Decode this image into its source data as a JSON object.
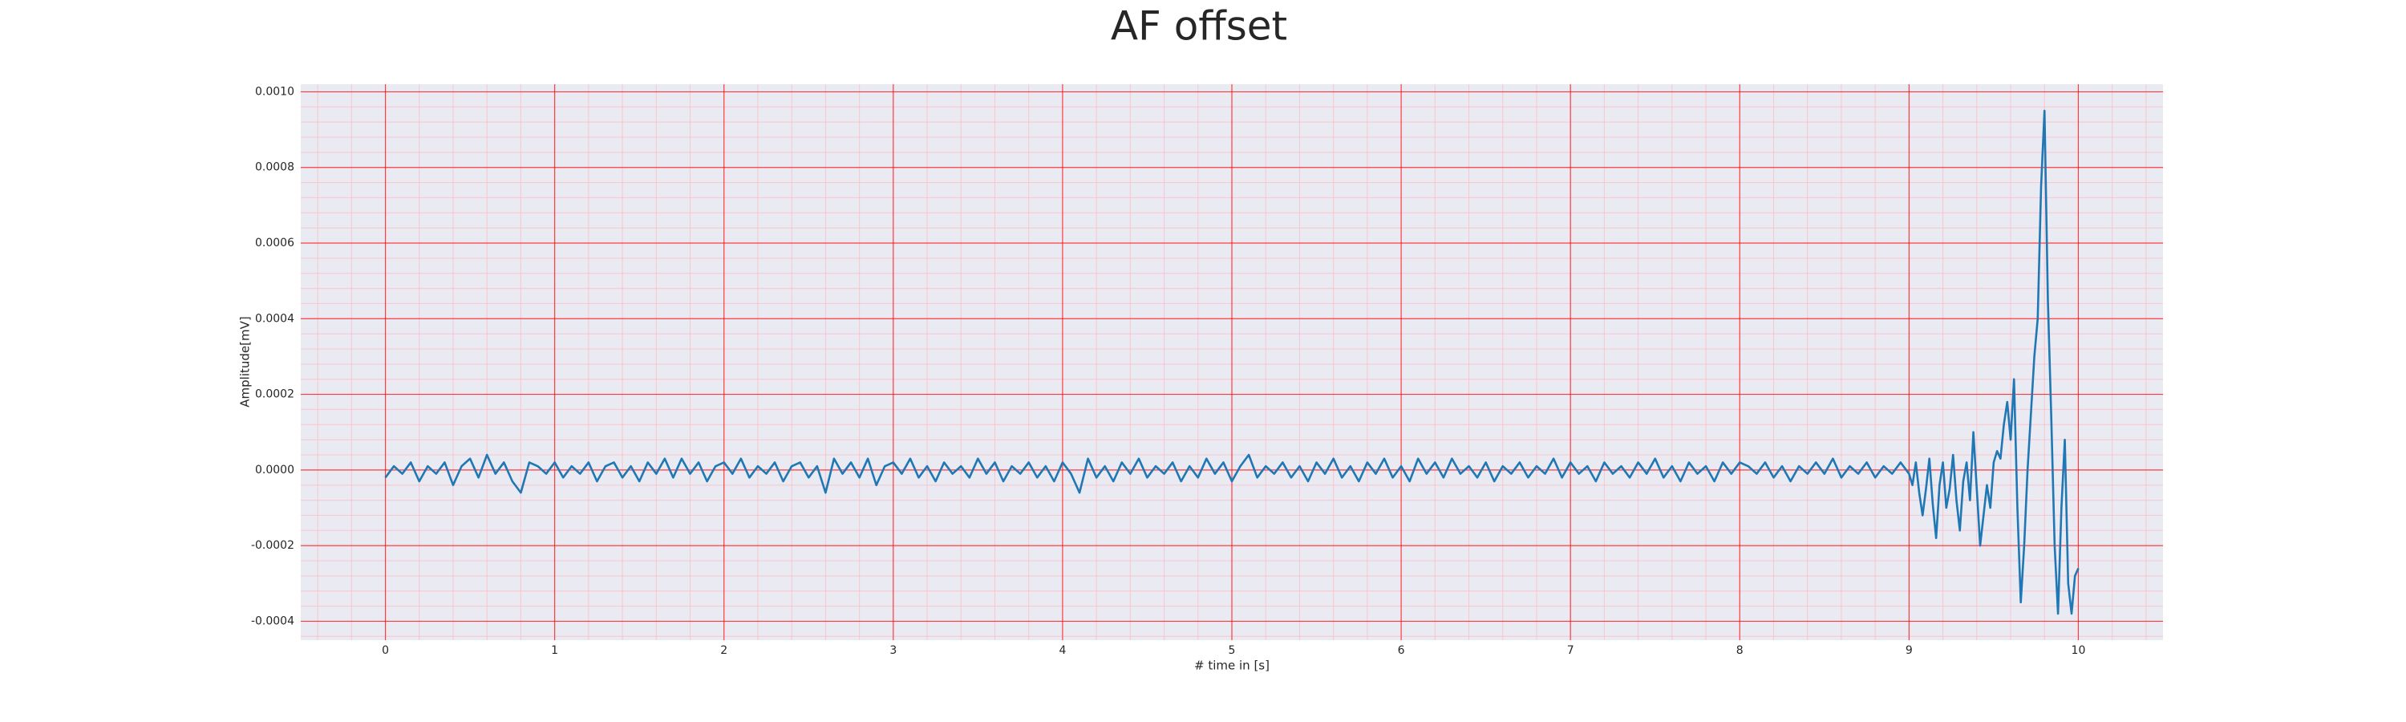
{
  "chart_data": {
    "type": "line",
    "title": "AF offset",
    "xlabel": "# time in [s]",
    "ylabel": "Amplitude[mV]",
    "color": "#1f77b4",
    "grid": true,
    "minor_grid": true,
    "minor_divisions": 5,
    "xlim": [
      -0.5,
      10.5
    ],
    "xticks": [
      0,
      1,
      2,
      3,
      4,
      5,
      6,
      7,
      8,
      9,
      10
    ],
    "ylim": [
      -0.00045,
      0.00102
    ],
    "yticks": [
      {
        "value": -0.0004,
        "label": "-0.0004"
      },
      {
        "value": -0.0002,
        "label": "-0.0002"
      },
      {
        "value": 0,
        "label": "0.0000"
      },
      {
        "value": 0.0002,
        "label": "0.0002"
      },
      {
        "value": 0.0004,
        "label": "0.0004"
      },
      {
        "value": 0.0006,
        "label": "0.0006"
      },
      {
        "value": 0.0008,
        "label": "0.0008"
      },
      {
        "value": 0.001,
        "label": "0.0010"
      }
    ],
    "x": [
      0,
      0.05,
      0.1,
      0.15,
      0.2,
      0.25,
      0.3,
      0.35,
      0.4,
      0.45,
      0.5,
      0.55,
      0.6,
      0.65,
      0.7,
      0.75,
      0.8,
      0.85,
      0.9,
      0.95,
      1,
      1.05,
      1.1,
      1.15,
      1.2,
      1.25,
      1.3,
      1.35,
      1.4,
      1.45,
      1.5,
      1.55,
      1.6,
      1.65,
      1.7,
      1.75,
      1.8,
      1.85,
      1.9,
      1.95,
      2,
      2.05,
      2.1,
      2.15,
      2.2,
      2.25,
      2.3,
      2.35,
      2.4,
      2.45,
      2.5,
      2.55,
      2.6,
      2.65,
      2.7,
      2.75,
      2.8,
      2.85,
      2.9,
      2.95,
      3,
      3.05,
      3.1,
      3.15,
      3.2,
      3.25,
      3.3,
      3.35,
      3.4,
      3.45,
      3.5,
      3.55,
      3.6,
      3.65,
      3.7,
      3.75,
      3.8,
      3.85,
      3.9,
      3.95,
      4,
      4.05,
      4.1,
      4.15,
      4.2,
      4.25,
      4.3,
      4.35,
      4.4,
      4.45,
      4.5,
      4.55,
      4.6,
      4.65,
      4.7,
      4.75,
      4.8,
      4.85,
      4.9,
      4.95,
      5,
      5.05,
      5.1,
      5.15,
      5.2,
      5.25,
      5.3,
      5.35,
      5.4,
      5.45,
      5.5,
      5.55,
      5.6,
      5.65,
      5.7,
      5.75,
      5.8,
      5.85,
      5.9,
      5.95,
      6,
      6.05,
      6.1,
      6.15,
      6.2,
      6.25,
      6.3,
      6.35,
      6.4,
      6.45,
      6.5,
      6.55,
      6.6,
      6.65,
      6.7,
      6.75,
      6.8,
      6.85,
      6.9,
      6.95,
      7,
      7.05,
      7.1,
      7.15,
      7.2,
      7.25,
      7.3,
      7.35,
      7.4,
      7.45,
      7.5,
      7.55,
      7.6,
      7.65,
      7.7,
      7.75,
      7.8,
      7.85,
      7.9,
      7.95,
      8,
      8.05,
      8.1,
      8.15,
      8.2,
      8.25,
      8.3,
      8.35,
      8.4,
      8.45,
      8.5,
      8.55,
      8.6,
      8.65,
      8.7,
      8.75,
      8.8,
      8.85,
      8.9,
      8.95,
      9,
      9.02,
      9.04,
      9.06,
      9.08,
      9.1,
      9.12,
      9.14,
      9.16,
      9.18,
      9.2,
      9.22,
      9.24,
      9.26,
      9.28,
      9.3,
      9.32,
      9.34,
      9.36,
      9.38,
      9.4,
      9.42,
      9.44,
      9.46,
      9.48,
      9.5,
      9.52,
      9.54,
      9.56,
      9.58,
      9.6,
      9.62,
      9.64,
      9.66,
      9.68,
      9.7,
      9.72,
      9.74,
      9.76,
      9.78,
      9.8,
      9.82,
      9.84,
      9.86,
      9.88,
      9.9,
      9.92,
      9.94,
      9.96,
      9.98,
      10
    ],
    "values": [
      -2e-05,
      1e-05,
      -1e-05,
      2e-05,
      -3e-05,
      1e-05,
      -1e-05,
      2e-05,
      -4e-05,
      1e-05,
      3e-05,
      -2e-05,
      4e-05,
      -1e-05,
      2e-05,
      -3e-05,
      -6e-05,
      2e-05,
      1e-05,
      -1e-05,
      2e-05,
      -2e-05,
      1e-05,
      -1e-05,
      2e-05,
      -3e-05,
      1e-05,
      2e-05,
      -2e-05,
      1e-05,
      -3e-05,
      2e-05,
      -1e-05,
      3e-05,
      -2e-05,
      3e-05,
      -1e-05,
      2e-05,
      -3e-05,
      1e-05,
      2e-05,
      -1e-05,
      3e-05,
      -2e-05,
      1e-05,
      -1e-05,
      2e-05,
      -3e-05,
      1e-05,
      2e-05,
      -2e-05,
      1e-05,
      -6e-05,
      3e-05,
      -1e-05,
      2e-05,
      -2e-05,
      3e-05,
      -4e-05,
      1e-05,
      2e-05,
      -1e-05,
      3e-05,
      -2e-05,
      1e-05,
      -3e-05,
      2e-05,
      -1e-05,
      1e-05,
      -2e-05,
      3e-05,
      -1e-05,
      2e-05,
      -3e-05,
      1e-05,
      -1e-05,
      2e-05,
      -2e-05,
      1e-05,
      -3e-05,
      2e-05,
      -1e-05,
      -6e-05,
      3e-05,
      -2e-05,
      1e-05,
      -3e-05,
      2e-05,
      -1e-05,
      3e-05,
      -2e-05,
      1e-05,
      -1e-05,
      2e-05,
      -3e-05,
      1e-05,
      -2e-05,
      3e-05,
      -1e-05,
      2e-05,
      -3e-05,
      1e-05,
      4e-05,
      -2e-05,
      1e-05,
      -1e-05,
      2e-05,
      -2e-05,
      1e-05,
      -3e-05,
      2e-05,
      -1e-05,
      3e-05,
      -2e-05,
      1e-05,
      -3e-05,
      2e-05,
      -1e-05,
      3e-05,
      -2e-05,
      1e-05,
      -3e-05,
      3e-05,
      -1e-05,
      2e-05,
      -2e-05,
      3e-05,
      -1e-05,
      1e-05,
      -2e-05,
      2e-05,
      -3e-05,
      1e-05,
      -1e-05,
      2e-05,
      -2e-05,
      1e-05,
      -1e-05,
      3e-05,
      -2e-05,
      2e-05,
      -1e-05,
      1e-05,
      -3e-05,
      2e-05,
      -1e-05,
      1e-05,
      -2e-05,
      2e-05,
      -1e-05,
      3e-05,
      -2e-05,
      1e-05,
      -3e-05,
      2e-05,
      -1e-05,
      1e-05,
      -3e-05,
      2e-05,
      -1e-05,
      2e-05,
      1e-05,
      -1e-05,
      2e-05,
      -2e-05,
      1e-05,
      -3e-05,
      1e-05,
      -1e-05,
      2e-05,
      -1e-05,
      3e-05,
      -2e-05,
      1e-05,
      -1e-05,
      2e-05,
      -2e-05,
      1e-05,
      -1e-05,
      2e-05,
      -1e-05,
      -4e-05,
      2e-05,
      -6e-05,
      -0.00012,
      -5e-05,
      3e-05,
      -9e-05,
      -0.00018,
      -4e-05,
      2e-05,
      -0.0001,
      -5e-05,
      4e-05,
      -8e-05,
      -0.00016,
      -3e-05,
      2e-05,
      -8e-05,
      0.0001,
      -5e-05,
      -0.0002,
      -0.00012,
      -4e-05,
      -0.0001,
      2e-05,
      5e-05,
      3e-05,
      0.00012,
      0.00018,
      8e-05,
      0.00024,
      -0.0001,
      -0.00035,
      -0.0002,
      0,
      0.00015,
      0.0003,
      0.0004,
      0.00075,
      0.00095,
      0.00045,
      0.00014,
      -0.0002,
      -0.00038,
      -0.0001,
      8e-05,
      -0.0003,
      -0.00038,
      -0.00028,
      -0.00026
    ]
  }
}
